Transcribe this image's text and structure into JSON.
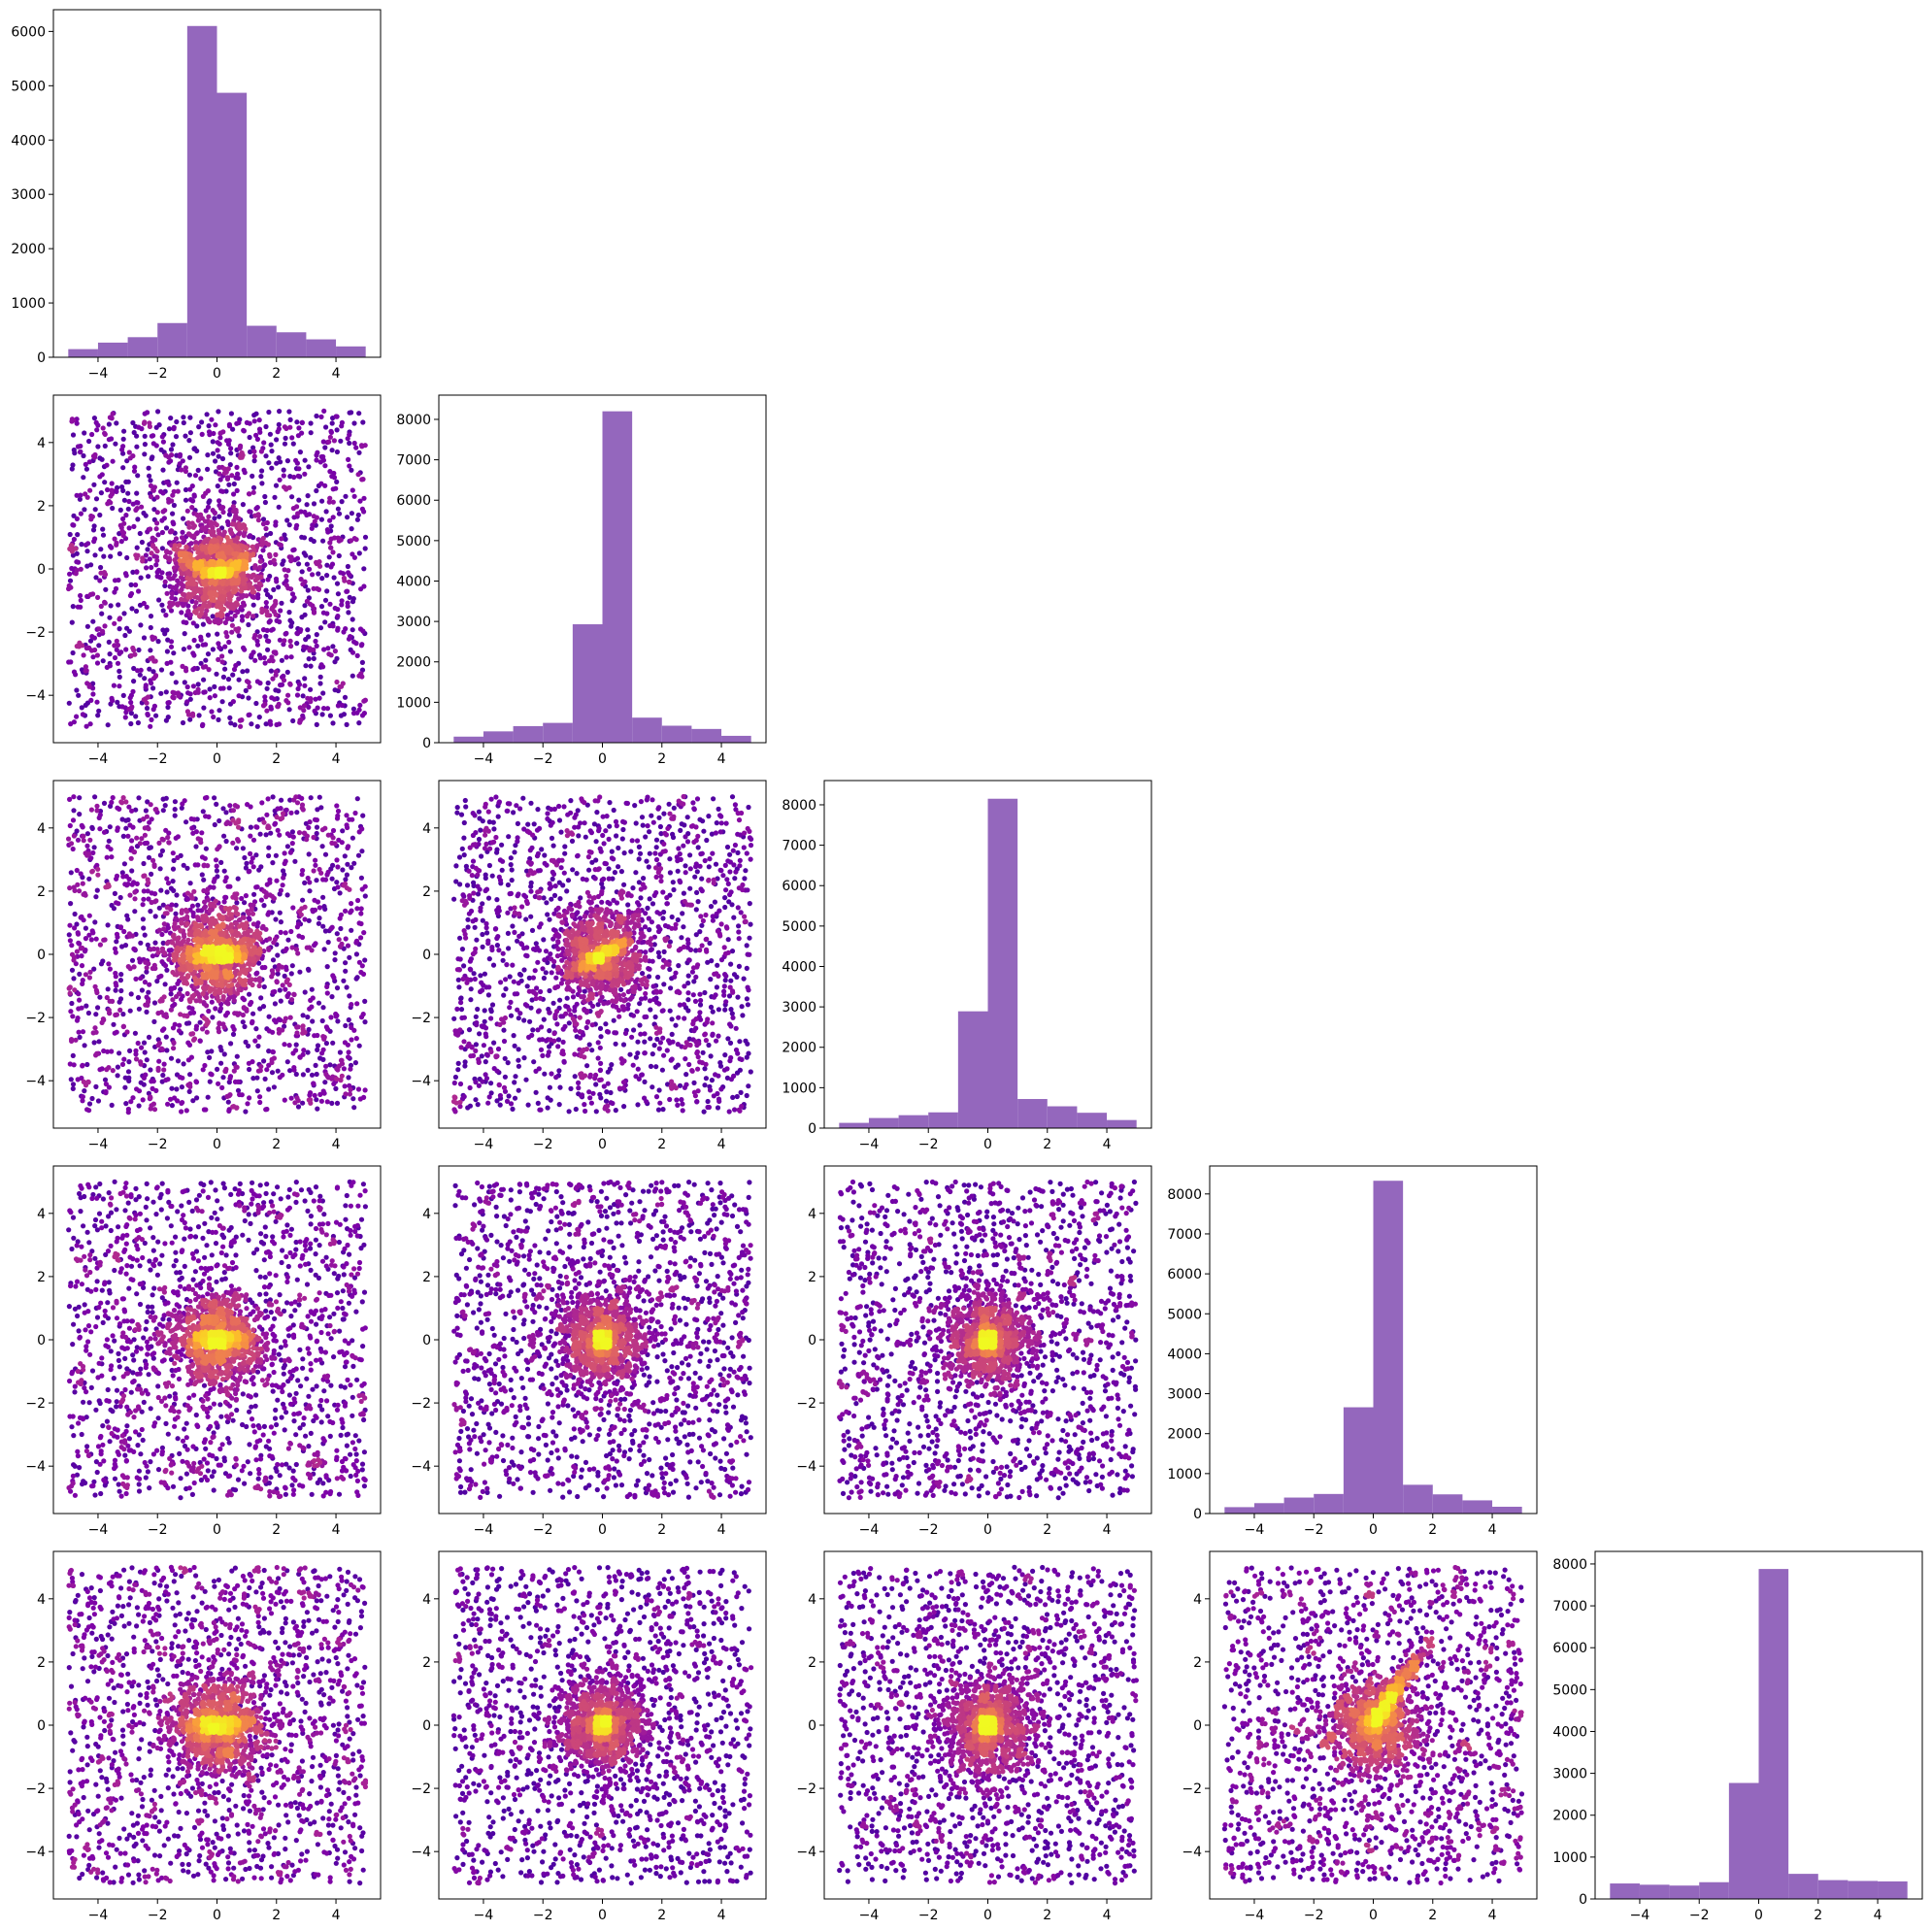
{
  "colors": {
    "hist_fill": "#9467bd",
    "density_low": "#0d0887",
    "density_mid": "#cc4778",
    "density_high": "#f0f921",
    "axis": "#000000",
    "background": "#ffffff"
  },
  "chart_data": {
    "type": "corner",
    "layout": "lower-triangular grid, 5 x 5; histograms on diagonal, density-colored scatter plots below",
    "dimensions": 5,
    "colormap": "plasma",
    "xlim": [
      -5.5,
      5.5
    ],
    "ylim_scatter": [
      -5.5,
      5.5
    ],
    "x_ticks": [
      -4,
      -2,
      0,
      2,
      4
    ],
    "y_ticks_scatter": [
      -4,
      -2,
      0,
      2,
      4
    ],
    "bin_edges": [
      -5,
      -4,
      -3,
      -2,
      -1,
      0,
      1,
      2,
      3,
      4,
      5
    ],
    "grid": false,
    "histograms": [
      {
        "row": 0,
        "col": 0,
        "counts": [
          150,
          270,
          370,
          630,
          6100,
          4870,
          580,
          460,
          330,
          200
        ],
        "y_ticks": [
          0,
          1000,
          2000,
          3000,
          4000,
          5000,
          6000
        ],
        "ylim": [
          0,
          6400
        ]
      },
      {
        "row": 1,
        "col": 1,
        "counts": [
          150,
          280,
          410,
          490,
          2930,
          8200,
          620,
          420,
          340,
          170
        ],
        "y_ticks": [
          0,
          1000,
          2000,
          3000,
          4000,
          5000,
          6000,
          7000,
          8000
        ],
        "ylim": [
          0,
          8600
        ]
      },
      {
        "row": 2,
        "col": 2,
        "counts": [
          130,
          250,
          320,
          390,
          2890,
          8150,
          720,
          540,
          380,
          200
        ],
        "y_ticks": [
          0,
          1000,
          2000,
          3000,
          4000,
          5000,
          6000,
          7000,
          8000
        ],
        "ylim": [
          0,
          8600
        ]
      },
      {
        "row": 3,
        "col": 3,
        "counts": [
          160,
          260,
          400,
          490,
          2660,
          8330,
          720,
          480,
          330,
          170
        ],
        "y_ticks": [
          0,
          1000,
          2000,
          3000,
          4000,
          5000,
          6000,
          7000,
          8000
        ],
        "ylim": [
          0,
          8700
        ]
      },
      {
        "row": 4,
        "col": 4,
        "counts": [
          370,
          340,
          320,
          400,
          2770,
          7880,
          600,
          450,
          430,
          420
        ],
        "y_ticks": [
          0,
          1000,
          2000,
          3000,
          4000,
          5000,
          6000,
          7000,
          8000
        ],
        "ylim": [
          0,
          8300
        ]
      }
    ],
    "scatter_panels": [
      {
        "row": 1,
        "col": 0,
        "points": 3000,
        "x_range": [
          -5,
          5
        ],
        "y_range": [
          -5,
          5
        ],
        "dense_core": "curved banana-shaped band near origin"
      },
      {
        "row": 2,
        "col": 0,
        "points": 3000,
        "x_range": [
          -5,
          5
        ],
        "y_range": [
          -5,
          5
        ],
        "dense_core": "elongated band near origin"
      },
      {
        "row": 2,
        "col": 1,
        "points": 3000,
        "x_range": [
          -5,
          5
        ],
        "y_range": [
          -5,
          5
        ],
        "dense_core": "compact tilted blob near origin"
      },
      {
        "row": 3,
        "col": 0,
        "points": 3000,
        "x_range": [
          -5,
          5
        ],
        "y_range": [
          -5,
          5
        ],
        "dense_core": "horizontal band near origin"
      },
      {
        "row": 3,
        "col": 1,
        "points": 3000,
        "x_range": [
          -5,
          5
        ],
        "y_range": [
          -5,
          5
        ],
        "dense_core": "small blob near origin"
      },
      {
        "row": 3,
        "col": 2,
        "points": 3000,
        "x_range": [
          -5,
          5
        ],
        "y_range": [
          -5,
          5
        ],
        "dense_core": "small blob near origin"
      },
      {
        "row": 4,
        "col": 0,
        "points": 3000,
        "x_range": [
          -5,
          5
        ],
        "y_range": [
          -5,
          5
        ],
        "dense_core": "horizontal band near origin"
      },
      {
        "row": 4,
        "col": 1,
        "points": 3000,
        "x_range": [
          -5,
          5
        ],
        "y_range": [
          -5,
          5
        ],
        "dense_core": "small blob near origin"
      },
      {
        "row": 4,
        "col": 2,
        "points": 3000,
        "x_range": [
          -5,
          5
        ],
        "y_range": [
          -5,
          5
        ],
        "dense_core": "small blob near origin"
      },
      {
        "row": 4,
        "col": 3,
        "points": 3000,
        "x_range": [
          -5,
          5
        ],
        "y_range": [
          -5,
          5
        ],
        "dense_core": "blob near origin with upward-right wedge"
      }
    ]
  }
}
